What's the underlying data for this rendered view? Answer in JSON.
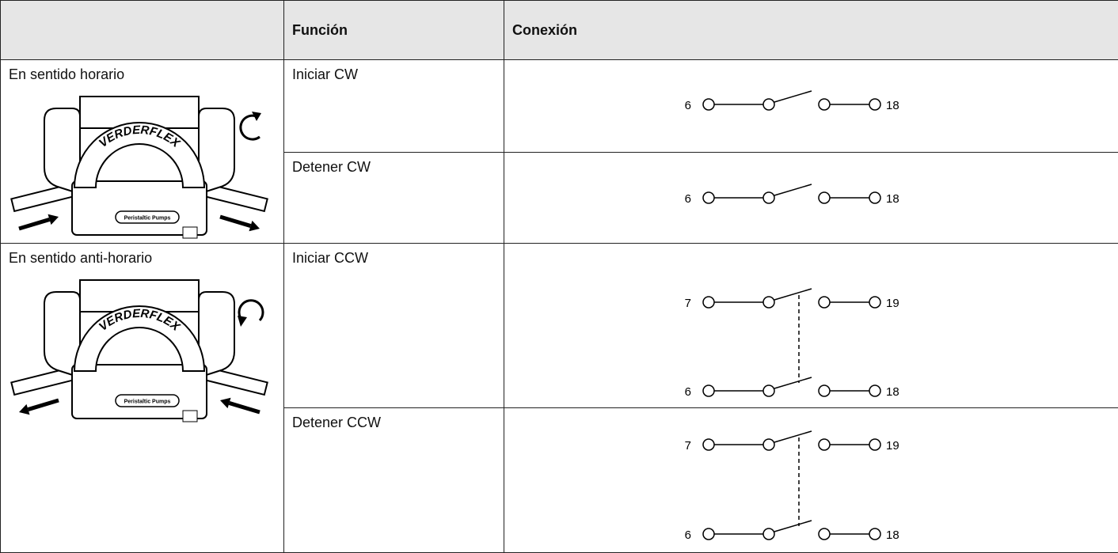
{
  "table": {
    "headers": [
      "Función",
      "Conexión"
    ],
    "pump": {
      "brand": "VERDERFLEX",
      "label": "Peristaltic Pumps"
    },
    "groups": [
      {
        "label": "En sentido horario",
        "rows": [
          {
            "function": "Iniciar CW",
            "switches": [
              [
                "6",
                "18"
              ]
            ]
          },
          {
            "function": "Detener CW",
            "switches": [
              [
                "6",
                "18"
              ]
            ]
          }
        ]
      },
      {
        "label": "En sentido anti-horario",
        "rows": [
          {
            "function": "Iniciar CCW",
            "switches": [
              [
                "7",
                "19"
              ],
              [
                "6",
                "18"
              ]
            ]
          },
          {
            "function": "Detener CCW",
            "switches": [
              [
                "7",
                "19"
              ],
              [
                "6",
                "18"
              ]
            ]
          }
        ]
      }
    ]
  }
}
